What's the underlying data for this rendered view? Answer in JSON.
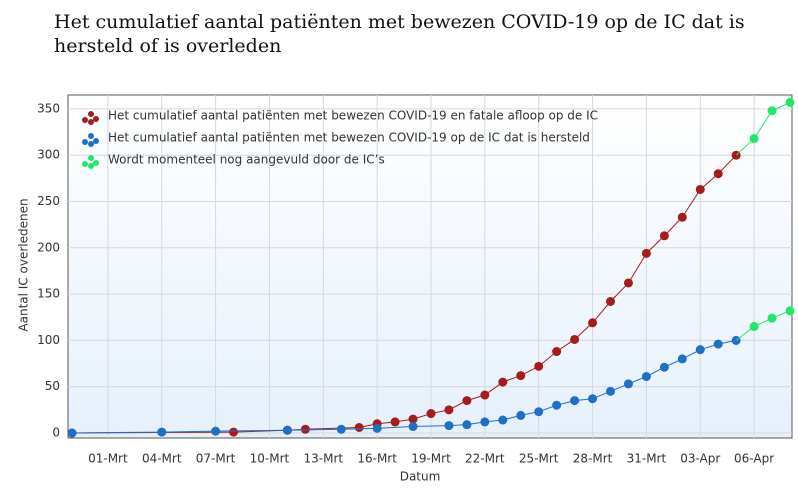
{
  "chart_data": {
    "type": "line",
    "title": "Het cumulatief aantal patiënten met bewezen COVID-19 op de IC dat is hersteld of is overleden",
    "x_label": "Datum",
    "y_label": "Aantal IC overledenen",
    "categories": [
      null,
      null,
      "01-Mrt",
      null,
      null,
      "04-Mrt",
      null,
      null,
      "07-Mrt",
      null,
      null,
      "10-Mrt",
      null,
      null,
      "13-Mrt",
      null,
      null,
      "16-Mrt",
      null,
      null,
      "19-Mrt",
      null,
      null,
      "22-Mrt",
      null,
      null,
      "25-Mrt",
      null,
      null,
      "28-Mrt",
      null,
      null,
      "31-Mrt",
      null,
      null,
      "03-Apr",
      null,
      null,
      "06-Apr",
      null,
      null
    ],
    "series": [
      {
        "name": "Het cumulatief aantal patiënten met bewezen COVID-19 en fatale afloop op de IC",
        "color": "#a51c1c",
        "values": [
          0,
          null,
          null,
          null,
          null,
          null,
          null,
          null,
          null,
          1,
          null,
          null,
          3,
          4,
          null,
          null,
          6,
          10,
          12,
          15,
          21,
          25,
          35,
          41,
          55,
          62,
          72,
          88,
          101,
          119,
          142,
          162,
          194,
          213,
          233,
          263,
          280,
          300,
          null,
          null,
          null
        ]
      },
      {
        "name": "Het cumulatief aantal patiënten met bewezen COVID-19 op de IC dat is hersteld",
        "color": "#1f6fc5",
        "values": [
          0,
          null,
          null,
          null,
          null,
          1,
          null,
          null,
          2,
          null,
          null,
          null,
          3,
          null,
          null,
          4,
          null,
          5,
          null,
          7,
          null,
          8,
          9,
          12,
          14,
          19,
          23,
          30,
          35,
          37,
          45,
          53,
          61,
          71,
          80,
          90,
          96,
          100,
          null,
          null,
          null
        ]
      },
      {
        "name": "Wordt momenteel nog aangevuld door de IC’s",
        "color": "#22e86a",
        "segments": [
          [
            null,
            null,
            null,
            null,
            null,
            null,
            null,
            null,
            null,
            null,
            null,
            null,
            null,
            null,
            null,
            null,
            null,
            null,
            null,
            null,
            null,
            null,
            null,
            null,
            null,
            null,
            null,
            null,
            null,
            null,
            null,
            null,
            null,
            null,
            null,
            null,
            null,
            null,
            318,
            348,
            357
          ],
          [
            null,
            null,
            null,
            null,
            null,
            null,
            null,
            null,
            null,
            null,
            null,
            null,
            null,
            null,
            null,
            null,
            null,
            null,
            null,
            null,
            null,
            null,
            null,
            null,
            null,
            null,
            null,
            null,
            null,
            null,
            null,
            null,
            null,
            null,
            null,
            null,
            null,
            null,
            115,
            124,
            132
          ]
        ]
      }
    ],
    "ylim": [
      0,
      365
    ],
    "yticks": [
      0,
      50,
      100,
      150,
      200,
      250,
      300,
      350
    ],
    "grid": true
  }
}
